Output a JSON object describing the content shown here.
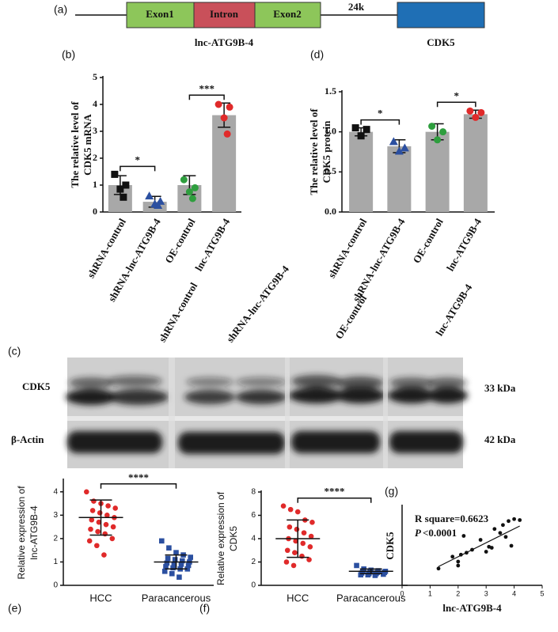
{
  "figure": {
    "diagram": {
      "panel_label": "(a)",
      "exon1": "Exon1",
      "intron": "Intron",
      "exon2": "Exon2",
      "distance": "24k",
      "gene_label": "lnc-ATG9B-4",
      "target_label": "CDK5"
    },
    "blot": {
      "panel_label": "(c)",
      "lanes": [
        "shRNA-control",
        "shRNA-lnc-ATG9B-4",
        "OE-control",
        "lnc-ATG9B-4"
      ],
      "rows": [
        "CDK5",
        "β-Actin"
      ],
      "sizes": [
        "33 kDa",
        "42 kDa"
      ]
    }
  },
  "chart_data": [
    {
      "type": "bar",
      "panel_label": "(b)",
      "y_label": [
        "The relative level of",
        "CDK5 mRNA"
      ],
      "categories": [
        "shRNA-control",
        "shRNA-lnc-ATG9B-4",
        "OE-control",
        "lnc-ATG9B-4"
      ],
      "values": [
        1.0,
        0.38,
        1.0,
        3.6
      ],
      "errors": [
        0.35,
        0.2,
        0.35,
        0.45
      ],
      "points": [
        [
          1.4,
          1.0,
          0.85,
          0.55
        ],
        [
          0.6,
          0.4,
          0.3,
          0.25
        ],
        [
          1.2,
          0.9,
          0.75,
          0.5
        ],
        [
          4.0,
          3.9,
          3.5,
          2.9
        ]
      ],
      "point_colors": [
        "#111111",
        "#2b4fa0",
        "#2e9e3e",
        "#e02a2a"
      ],
      "markers": [
        "square",
        "triangle",
        "circle",
        "circle"
      ],
      "color": "#a8a8a8",
      "ylim": [
        0,
        5
      ],
      "yticks": [
        0,
        1,
        2,
        3,
        4,
        5
      ],
      "significance": [
        "*",
        "***"
      ]
    },
    {
      "type": "bar",
      "panel_label": "(d)",
      "y_label": [
        "The relative level of",
        "CDK5 protein"
      ],
      "categories": [
        "shRNA-control",
        "shRNA-lnc-ATG9B-4",
        "OE-control",
        "lnc-ATG9B-4"
      ],
      "values": [
        1.0,
        0.82,
        1.0,
        1.22
      ],
      "errors": [
        0.05,
        0.08,
        0.1,
        0.05
      ],
      "points": [
        [
          1.05,
          1.03,
          0.95
        ],
        [
          0.88,
          0.8,
          0.76
        ],
        [
          1.07,
          1.0,
          0.9
        ],
        [
          1.26,
          1.24,
          1.18
        ]
      ],
      "point_colors": [
        "#111111",
        "#2b4fa0",
        "#2e9e3e",
        "#e02a2a"
      ],
      "markers": [
        "square",
        "triangle",
        "circle",
        "circle"
      ],
      "color": "#a8a8a8",
      "ylim": [
        0,
        1.5
      ],
      "yticks": [
        {
          "value": 0,
          "label": "0.0"
        },
        {
          "value": 0.5,
          "label": "0.5"
        },
        {
          "value": 1,
          "label": "1.0"
        },
        {
          "value": 1.5,
          "label": "1.5"
        }
      ],
      "significance": [
        "*",
        "*"
      ]
    },
    {
      "type": "strip",
      "panel_label": "(e)",
      "y_label": [
        "Relative expression of",
        "lnc-ATG9B-4"
      ],
      "categories": [
        "HCC",
        "Paracancerous"
      ],
      "points": [
        [
          4.0,
          3.6,
          3.5,
          3.4,
          3.3,
          3.2,
          3.1,
          3.0,
          2.9,
          2.8,
          2.7,
          2.6,
          2.5,
          2.4,
          2.3,
          2.2,
          2.0,
          1.9,
          1.7,
          1.3
        ],
        [
          1.9,
          1.6,
          1.4,
          1.3,
          1.2,
          1.15,
          1.1,
          1.05,
          1.0,
          0.95,
          0.9,
          0.9,
          0.85,
          0.8,
          0.75,
          0.7,
          0.7,
          0.6,
          0.5,
          0.35
        ]
      ],
      "means": [
        2.9,
        1.0
      ],
      "sd": [
        0.75,
        0.3
      ],
      "point_colors": [
        "#e02a2a",
        "#2b4fa0"
      ],
      "markers": [
        "circle",
        "square"
      ],
      "ylim": [
        0,
        4.5
      ],
      "yticks": [
        0,
        1,
        2,
        3,
        4
      ],
      "significance": [
        "****"
      ]
    },
    {
      "type": "strip",
      "panel_label": "(f)",
      "y_label": [
        "Relative expression of",
        "CDK5"
      ],
      "categories": [
        "HCC",
        "Paracancerous"
      ],
      "points": [
        [
          6.8,
          6.5,
          6.3,
          5.6,
          5.4,
          5.0,
          4.8,
          4.5,
          4.2,
          4.0,
          3.8,
          3.6,
          3.3,
          3.0,
          2.8,
          2.5,
          2.2,
          2.0,
          1.7
        ],
        [
          1.7,
          1.4,
          1.3,
          1.25,
          1.2,
          1.2,
          1.15,
          1.1,
          1.1,
          1.05,
          1.0,
          1.0,
          0.95,
          0.9,
          0.9,
          0.85
        ]
      ],
      "means": [
        4.0,
        1.2
      ],
      "sd": [
        1.6,
        0.2
      ],
      "point_colors": [
        "#e02a2a",
        "#2b4fa0"
      ],
      "markers": [
        "circle",
        "square"
      ],
      "ylim": [
        0,
        8
      ],
      "yticks": [
        0,
        2,
        4,
        6,
        8
      ],
      "significance": [
        "****"
      ]
    },
    {
      "type": "scatter",
      "panel_label": "(g)",
      "x_label": "lnc-ATG9B-4",
      "y_label": "CDK5",
      "x": [
        1.3,
        1.8,
        2.0,
        2.0,
        2.1,
        2.2,
        2.3,
        2.5,
        2.8,
        3.0,
        3.1,
        3.2,
        3.3,
        3.5,
        3.6,
        3.7,
        3.8,
        3.9,
        4.0,
        4.2
      ],
      "y": [
        1.7,
        2.9,
        2.4,
        2.0,
        3.1,
        5.0,
        3.3,
        3.6,
        4.6,
        3.4,
        3.9,
        3.8,
        5.7,
        5.3,
        6.1,
        4.9,
        6.5,
        4.0,
        6.7,
        6.6
      ],
      "fit_line": {
        "x": [
          1.3,
          4.2
        ],
        "y": [
          1.9,
          6.0
        ]
      },
      "annotation": "R square=0.6623",
      "p_label": "P",
      "p_value": "<0.0001",
      "color": "#111111",
      "xlim": [
        0,
        5
      ],
      "xticks": [
        0,
        1,
        2,
        3,
        4,
        5
      ],
      "ylim": [
        0,
        8
      ]
    }
  ]
}
